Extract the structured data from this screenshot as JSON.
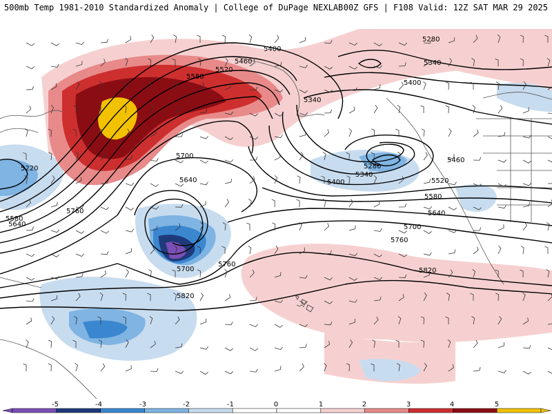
{
  "header": {
    "left": "500mb Temp 1981-2010 Standardized Anomaly | College of DuPage NEXLAB",
    "right": "00Z GFS | F108 Valid: 12Z SAT MAR 29 2025"
  },
  "colors": {
    "s_neg5": "#7b4fb5",
    "s_neg4": "#1f3a7a",
    "s_neg3": "#3a87d0",
    "s_neg2": "#7fb4e3",
    "s_neg1": "#c8dcef",
    "s_zero": "#ffffff",
    "s_pos1": "#f6d0d0",
    "s_pos2": "#e88a8a",
    "s_pos3": "#cd2f2f",
    "s_pos4": "#8b0d14",
    "s_pos5": "#f2c200",
    "contour": "#000000",
    "barb": "#333333"
  },
  "legend": {
    "ticks": [
      "-5",
      "-4",
      "-3",
      "-2",
      "-1",
      "0",
      "1",
      "2",
      "3",
      "4",
      "5"
    ]
  },
  "contour_labels": [
    {
      "id": "c5400a",
      "text": "5400"
    },
    {
      "id": "c5460a",
      "text": "5460"
    },
    {
      "id": "c5520a",
      "text": "5520"
    },
    {
      "id": "c5580a",
      "text": "5580"
    },
    {
      "id": "c5700a",
      "text": "5700"
    },
    {
      "id": "c5640a",
      "text": "5640"
    },
    {
      "id": "c5760a",
      "text": "5760"
    },
    {
      "id": "c5220a",
      "text": "5220"
    },
    {
      "id": "c5580b",
      "text": "5580"
    },
    {
      "id": "c5640b",
      "text": "5640"
    },
    {
      "id": "c5700b",
      "text": "5700"
    },
    {
      "id": "c5760b",
      "text": "5760"
    },
    {
      "id": "c5820a",
      "text": "5820"
    },
    {
      "id": "c5340a",
      "text": "5340"
    },
    {
      "id": "c5280a",
      "text": "5280"
    },
    {
      "id": "c5340b",
      "text": "5340"
    },
    {
      "id": "c5400b",
      "text": "5400"
    },
    {
      "id": "c5280b",
      "text": "5280"
    },
    {
      "id": "c5340c",
      "text": "5340"
    },
    {
      "id": "c5400c",
      "text": "5400"
    },
    {
      "id": "c5460b",
      "text": "5460"
    },
    {
      "id": "c5520b",
      "text": "5520"
    },
    {
      "id": "c5580c",
      "text": "5580"
    },
    {
      "id": "c5640c",
      "text": "5640"
    },
    {
      "id": "c5700c",
      "text": "5700"
    },
    {
      "id": "c5760c",
      "text": "5760"
    },
    {
      "id": "c5820b",
      "text": "5820"
    }
  ]
}
